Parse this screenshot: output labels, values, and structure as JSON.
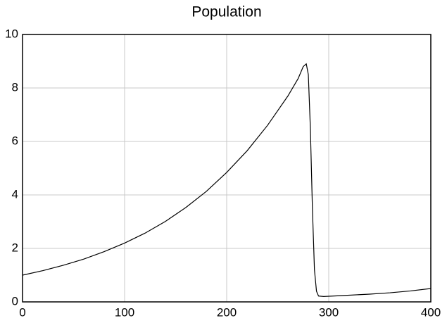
{
  "chart_data": {
    "type": "line",
    "title": "Population",
    "x": [
      0,
      20,
      40,
      60,
      80,
      100,
      120,
      140,
      160,
      180,
      200,
      220,
      240,
      260,
      270,
      275,
      278,
      280,
      282,
      284,
      286,
      288,
      290,
      295,
      300,
      320,
      340,
      360,
      380,
      400
    ],
    "series": [
      {
        "name": "Population",
        "color": "#000000",
        "values": [
          1.0,
          1.17,
          1.37,
          1.6,
          1.88,
          2.2,
          2.57,
          3.01,
          3.53,
          4.13,
          4.84,
          5.65,
          6.6,
          7.7,
          8.35,
          8.8,
          8.9,
          8.5,
          6.5,
          3.5,
          1.2,
          0.4,
          0.22,
          0.2,
          0.21,
          0.25,
          0.29,
          0.34,
          0.41,
          0.5
        ]
      }
    ],
    "xlim": [
      0,
      400
    ],
    "xticks": [
      0,
      100,
      200,
      300,
      400
    ],
    "ylim": [
      0,
      10
    ],
    "yticks": [
      0,
      2,
      4,
      6,
      8,
      10
    ],
    "grid": true
  }
}
